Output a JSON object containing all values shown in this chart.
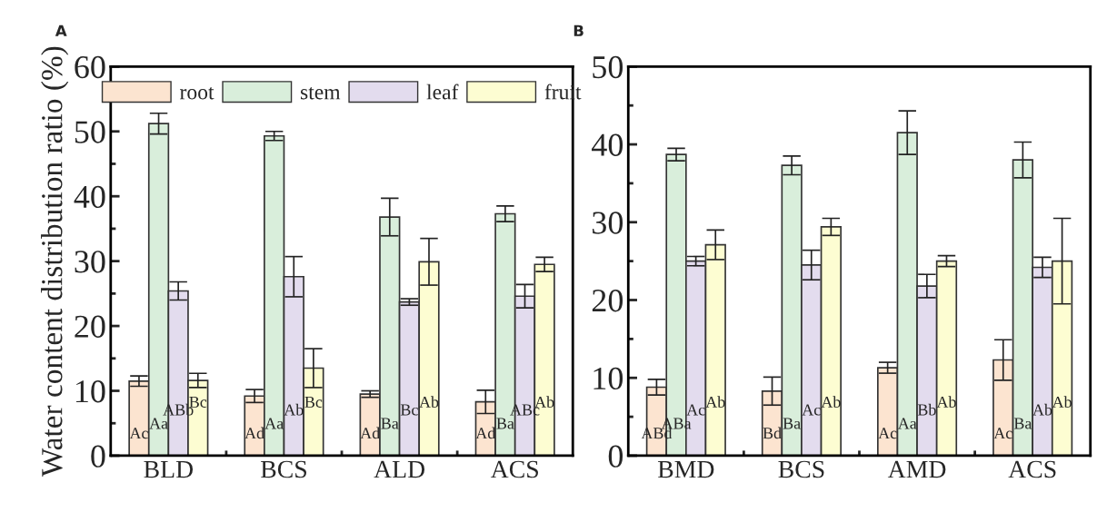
{
  "chart_data": [
    {
      "type": "bar",
      "title": "A",
      "ylabel": "Water content distribution ratio (%)",
      "categories": [
        "BLD",
        "BCS",
        "ALD",
        "ACS"
      ],
      "ylim": [
        0,
        60
      ],
      "yticks": [
        0,
        10,
        20,
        30,
        40,
        50,
        60
      ],
      "legend": "top",
      "grid": false,
      "series": [
        {
          "name": "root",
          "color": "#fce4d0",
          "values": [
            11.5,
            9.2,
            9.5,
            8.3
          ],
          "errors": [
            0.8,
            1.0,
            0.5,
            1.8
          ],
          "value_labels": [
            "Ac",
            "Ad",
            "Ad",
            "Ad"
          ]
        },
        {
          "name": "stem",
          "color": "#d9eedb",
          "values": [
            51.2,
            49.3,
            36.8,
            37.3
          ],
          "errors": [
            1.6,
            0.7,
            2.9,
            1.2
          ],
          "value_labels": [
            "Aa",
            "Aa",
            "Ba",
            "Ba"
          ]
        },
        {
          "name": "leaf",
          "color": "#e3dcee",
          "values": [
            25.4,
            27.6,
            23.7,
            24.6
          ],
          "errors": [
            1.4,
            3.1,
            0.5,
            1.8
          ],
          "value_labels": [
            "ABb",
            "Ab",
            "Bc",
            "ABc"
          ]
        },
        {
          "name": "fruit",
          "color": "#fdfdd2",
          "values": [
            11.6,
            13.5,
            29.9,
            29.5
          ],
          "errors": [
            1.1,
            3.0,
            3.6,
            1.1
          ],
          "value_labels": [
            "Bc",
            "Bc",
            "Ab",
            "Ab"
          ]
        }
      ]
    },
    {
      "type": "bar",
      "title": "B",
      "categories": [
        "BMD",
        "BCS",
        "AMD",
        "ACS"
      ],
      "ylim": [
        0,
        50
      ],
      "yticks": [
        0,
        10,
        20,
        30,
        40,
        50
      ],
      "grid": false,
      "series": [
        {
          "color": "#fce4d0",
          "values": [
            8.8,
            8.3,
            11.3,
            12.3
          ],
          "errors": [
            1.0,
            1.8,
            0.7,
            2.6
          ],
          "value_labels": [
            "ABd",
            "Bd",
            "Ac",
            "Ac"
          ]
        },
        {
          "color": "#d9eedb",
          "values": [
            38.7,
            37.3,
            41.5,
            38.0
          ],
          "errors": [
            0.8,
            1.2,
            2.8,
            2.3
          ],
          "value_labels": [
            "ABa",
            "Ba",
            "Aa",
            "Ba"
          ]
        },
        {
          "color": "#e3dcee",
          "values": [
            25.0,
            24.5,
            21.8,
            24.2
          ],
          "errors": [
            0.6,
            1.9,
            1.5,
            1.3
          ],
          "value_labels": [
            "Ac",
            "Ac",
            "Bb",
            "Ab"
          ]
        },
        {
          "color": "#fdfdd2",
          "values": [
            27.1,
            29.4,
            25.0,
            25.0
          ],
          "errors": [
            1.9,
            1.1,
            0.7,
            5.5
          ],
          "value_labels": [
            "Ab",
            "Ab",
            "Ab",
            "Ab"
          ]
        }
      ]
    }
  ]
}
